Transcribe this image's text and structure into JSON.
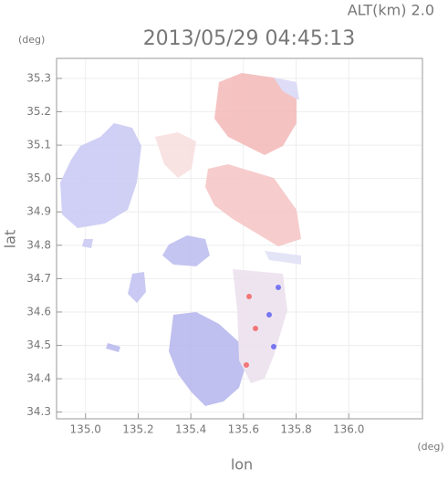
{
  "chart_data": {
    "type": "map",
    "title": "2013/05/29 04:45:13",
    "altitude_label": "ALT(km) 2.0",
    "y_unit": "(deg)",
    "x_unit": "(deg)",
    "xlabel": "lon",
    "ylabel": "lat",
    "xlim": [
      134.89,
      136.28
    ],
    "ylim": [
      34.28,
      35.36
    ],
    "xticks": [
      {
        "value": 135,
        "label": "135.0"
      },
      135.2,
      135.4,
      135.6,
      135.8,
      {
        "value": 136,
        "label": "136.0"
      }
    ],
    "yticks": [
      34.3,
      34.4,
      34.5,
      34.6,
      34.7,
      34.8,
      34.9,
      {
        "value": 35,
        "label": "35.0"
      },
      35.1,
      35.2,
      35.3
    ],
    "grid": true
  }
}
